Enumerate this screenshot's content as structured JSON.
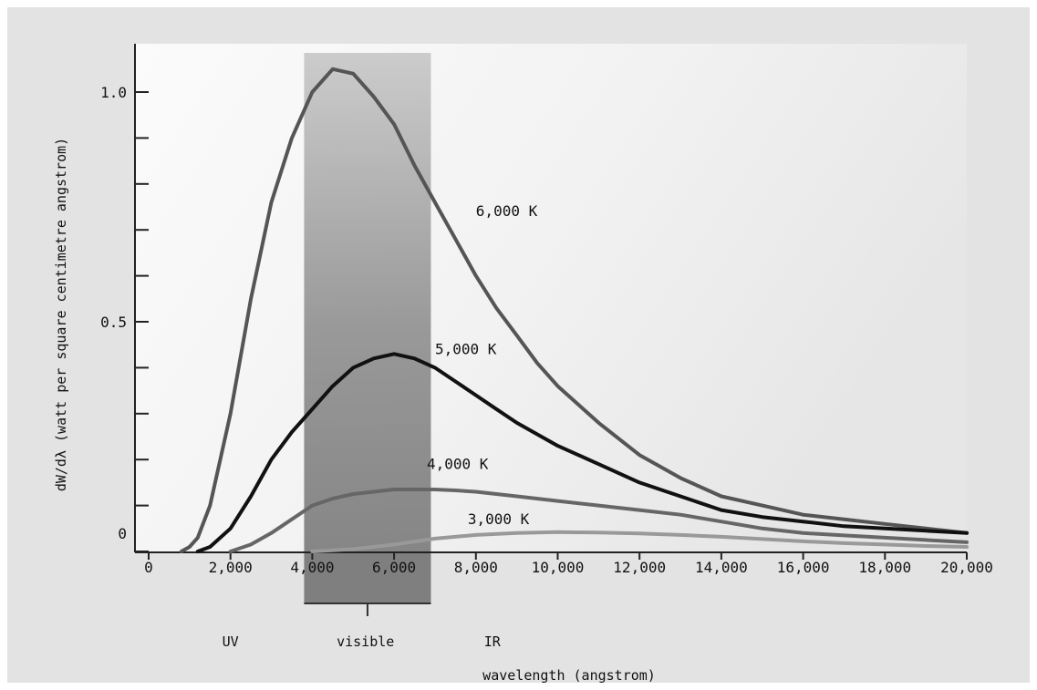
{
  "chart_data": {
    "type": "line",
    "xlabel": "wavelength (angstrom)",
    "ylabel": "dW/dλ (watt per square centimetre angstrom)",
    "xlim": [
      0,
      20000
    ],
    "ylim": [
      0,
      1.1
    ],
    "x_ticks": [
      {
        "value": 0,
        "label": "0"
      },
      {
        "value": 2000,
        "label": "2,000"
      },
      {
        "value": 4000,
        "label": "4,000"
      },
      {
        "value": 6000,
        "label": "6,000"
      },
      {
        "value": 8000,
        "label": "8,000"
      },
      {
        "value": 10000,
        "label": "10,000"
      },
      {
        "value": 12000,
        "label": "12,000"
      },
      {
        "value": 14000,
        "label": "14,000"
      },
      {
        "value": 16000,
        "label": "16,000"
      },
      {
        "value": 18000,
        "label": "18,000"
      },
      {
        "value": 20000,
        "label": "20,000"
      }
    ],
    "y_ticks": [
      {
        "value": 0,
        "label": "0"
      },
      {
        "value": 0.1,
        "label": ""
      },
      {
        "value": 0.2,
        "label": ""
      },
      {
        "value": 0.3,
        "label": ""
      },
      {
        "value": 0.4,
        "label": ""
      },
      {
        "value": 0.5,
        "label": "0.5"
      },
      {
        "value": 0.6,
        "label": ""
      },
      {
        "value": 0.7,
        "label": ""
      },
      {
        "value": 0.8,
        "label": ""
      },
      {
        "value": 0.9,
        "label": ""
      },
      {
        "value": 1.0,
        "label": "1.0"
      }
    ],
    "grid": false,
    "visible_band": {
      "x_start": 3800,
      "x_end": 6900,
      "label": "visible"
    },
    "band_labels": [
      {
        "text": "UV",
        "x": 2000
      },
      {
        "text": "visible",
        "x": 5300
      },
      {
        "text": "IR",
        "x": 8400
      }
    ],
    "series": [
      {
        "name": "6,000 K",
        "color": "#555555",
        "x": [
          800,
          1000,
          1200,
          1500,
          2000,
          2500,
          3000,
          3500,
          4000,
          4500,
          5000,
          5500,
          6000,
          6500,
          7000,
          7500,
          8000,
          8500,
          9000,
          9500,
          10000,
          11000,
          12000,
          13000,
          14000,
          15000,
          16000,
          17000,
          18000,
          19000,
          20000
        ],
        "values": [
          0.0,
          0.01,
          0.03,
          0.1,
          0.3,
          0.55,
          0.76,
          0.9,
          1.0,
          1.05,
          1.04,
          0.99,
          0.93,
          0.84,
          0.76,
          0.68,
          0.6,
          0.53,
          0.47,
          0.41,
          0.36,
          0.28,
          0.21,
          0.16,
          0.12,
          0.1,
          0.08,
          0.07,
          0.06,
          0.05,
          0.04
        ]
      },
      {
        "name": "5,000 K",
        "color": "#111111",
        "x": [
          1200,
          1500,
          2000,
          2500,
          3000,
          3500,
          4000,
          4500,
          5000,
          5500,
          6000,
          6500,
          7000,
          7500,
          8000,
          8500,
          9000,
          10000,
          11000,
          12000,
          13000,
          14000,
          15000,
          16000,
          17000,
          18000,
          19000,
          20000
        ],
        "values": [
          0.0,
          0.01,
          0.05,
          0.12,
          0.2,
          0.26,
          0.31,
          0.36,
          0.4,
          0.42,
          0.43,
          0.42,
          0.4,
          0.37,
          0.34,
          0.31,
          0.28,
          0.23,
          0.19,
          0.15,
          0.12,
          0.09,
          0.075,
          0.065,
          0.055,
          0.05,
          0.045,
          0.04
        ]
      },
      {
        "name": "4,000 K",
        "color": "#666666",
        "x": [
          2000,
          2500,
          3000,
          3500,
          4000,
          4500,
          5000,
          5500,
          6000,
          6500,
          7000,
          7500,
          8000,
          9000,
          10000,
          11000,
          12000,
          13000,
          14000,
          15000,
          16000,
          17000,
          18000,
          19000,
          20000
        ],
        "values": [
          0.0,
          0.015,
          0.04,
          0.07,
          0.1,
          0.115,
          0.125,
          0.13,
          0.135,
          0.135,
          0.135,
          0.133,
          0.13,
          0.12,
          0.11,
          0.1,
          0.09,
          0.08,
          0.065,
          0.05,
          0.04,
          0.035,
          0.03,
          0.025,
          0.02
        ]
      },
      {
        "name": "3,000 K",
        "color": "#999999",
        "x": [
          4000,
          5000,
          6000,
          7000,
          8000,
          9000,
          10000,
          11000,
          12000,
          13000,
          14000,
          15000,
          16000,
          17000,
          18000,
          19000,
          20000
        ],
        "values": [
          0.0,
          0.005,
          0.015,
          0.028,
          0.036,
          0.04,
          0.042,
          0.041,
          0.039,
          0.036,
          0.032,
          0.027,
          0.022,
          0.018,
          0.015,
          0.012,
          0.01
        ]
      }
    ],
    "curve_labels": [
      {
        "text": "6,000 K",
        "x": 8000,
        "y": 0.73
      },
      {
        "text": "5,000 K",
        "x": 7000,
        "y": 0.43
      },
      {
        "text": "4,000 K",
        "x": 6800,
        "y": 0.18
      },
      {
        "text": "3,000 K",
        "x": 7800,
        "y": 0.06
      }
    ]
  }
}
